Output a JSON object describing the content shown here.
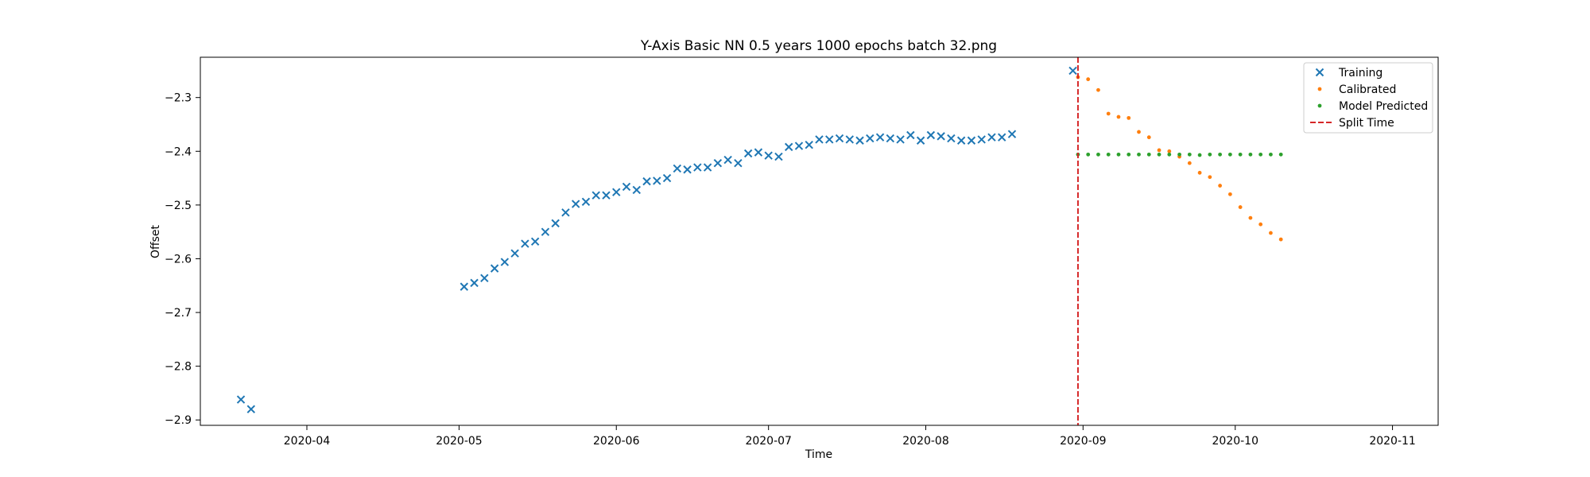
{
  "chart_data": {
    "type": "scatter",
    "title": "Y-Axis Basic NN 0.5 years 1000 epochs batch 32.png",
    "xlabel": "Time",
    "ylabel": "Offset",
    "xlim": [
      "2020-03-11",
      "2020-11-10"
    ],
    "ylim": [
      -2.91,
      -2.225
    ],
    "x_ticks": [
      "2020-04-01",
      "2020-05-01",
      "2020-06-01",
      "2020-07-01",
      "2020-08-01",
      "2020-09-01",
      "2020-10-01",
      "2020-11-01"
    ],
    "x_tick_labels": [
      "2020-04",
      "2020-05",
      "2020-06",
      "2020-07",
      "2020-08",
      "2020-09",
      "2020-10",
      "2020-11"
    ],
    "y_ticks": [
      -2.3,
      -2.4,
      -2.5,
      -2.6,
      -2.7,
      -2.8,
      -2.9
    ],
    "y_tick_labels": [
      "−2.3",
      "−2.4",
      "−2.5",
      "−2.6",
      "−2.7",
      "−2.8",
      "−2.9"
    ],
    "grid": false,
    "legend_position": "top-right",
    "series": [
      {
        "name": "Training",
        "marker": "x",
        "color": "#1f77b4",
        "points": [
          [
            "2020-03-19",
            -2.862
          ],
          [
            "2020-03-21",
            -2.88
          ],
          [
            "2020-05-02",
            -2.652
          ],
          [
            "2020-05-04",
            -2.645
          ],
          [
            "2020-05-06",
            -2.636
          ],
          [
            "2020-05-08",
            -2.618
          ],
          [
            "2020-05-10",
            -2.606
          ],
          [
            "2020-05-12",
            -2.59
          ],
          [
            "2020-05-14",
            -2.572
          ],
          [
            "2020-05-16",
            -2.568
          ],
          [
            "2020-05-18",
            -2.55
          ],
          [
            "2020-05-20",
            -2.534
          ],
          [
            "2020-05-22",
            -2.514
          ],
          [
            "2020-05-24",
            -2.498
          ],
          [
            "2020-05-26",
            -2.494
          ],
          [
            "2020-05-28",
            -2.482
          ],
          [
            "2020-05-30",
            -2.482
          ],
          [
            "2020-06-01",
            -2.476
          ],
          [
            "2020-06-03",
            -2.466
          ],
          [
            "2020-06-05",
            -2.472
          ],
          [
            "2020-06-07",
            -2.456
          ],
          [
            "2020-06-09",
            -2.455
          ],
          [
            "2020-06-11",
            -2.45
          ],
          [
            "2020-06-13",
            -2.432
          ],
          [
            "2020-06-15",
            -2.434
          ],
          [
            "2020-06-17",
            -2.43
          ],
          [
            "2020-06-19",
            -2.43
          ],
          [
            "2020-06-21",
            -2.422
          ],
          [
            "2020-06-23",
            -2.416
          ],
          [
            "2020-06-25",
            -2.422
          ],
          [
            "2020-06-27",
            -2.404
          ],
          [
            "2020-06-29",
            -2.402
          ],
          [
            "2020-07-01",
            -2.408
          ],
          [
            "2020-07-03",
            -2.41
          ],
          [
            "2020-07-05",
            -2.392
          ],
          [
            "2020-07-07",
            -2.39
          ],
          [
            "2020-07-09",
            -2.388
          ],
          [
            "2020-07-11",
            -2.378
          ],
          [
            "2020-07-13",
            -2.378
          ],
          [
            "2020-07-15",
            -2.376
          ],
          [
            "2020-07-17",
            -2.378
          ],
          [
            "2020-07-19",
            -2.38
          ],
          [
            "2020-07-21",
            -2.376
          ],
          [
            "2020-07-23",
            -2.374
          ],
          [
            "2020-07-25",
            -2.376
          ],
          [
            "2020-07-27",
            -2.378
          ],
          [
            "2020-07-29",
            -2.37
          ],
          [
            "2020-07-31",
            -2.38
          ],
          [
            "2020-08-02",
            -2.37
          ],
          [
            "2020-08-04",
            -2.372
          ],
          [
            "2020-08-06",
            -2.376
          ],
          [
            "2020-08-08",
            -2.38
          ],
          [
            "2020-08-10",
            -2.38
          ],
          [
            "2020-08-12",
            -2.378
          ],
          [
            "2020-08-14",
            -2.374
          ],
          [
            "2020-08-16",
            -2.374
          ],
          [
            "2020-08-18",
            -2.368
          ],
          [
            "2020-08-30",
            -2.25
          ]
        ]
      },
      {
        "name": "Calibrated",
        "marker": "dot",
        "color": "#ff7f0e",
        "points": [
          [
            "2020-08-31",
            -2.262
          ],
          [
            "2020-09-02",
            -2.266
          ],
          [
            "2020-09-04",
            -2.286
          ],
          [
            "2020-09-06",
            -2.33
          ],
          [
            "2020-09-08",
            -2.336
          ],
          [
            "2020-09-10",
            -2.338
          ],
          [
            "2020-09-12",
            -2.364
          ],
          [
            "2020-09-14",
            -2.374
          ],
          [
            "2020-09-16",
            -2.398
          ],
          [
            "2020-09-18",
            -2.4
          ],
          [
            "2020-09-20",
            -2.41
          ],
          [
            "2020-09-22",
            -2.422
          ],
          [
            "2020-09-24",
            -2.44
          ],
          [
            "2020-09-26",
            -2.448
          ],
          [
            "2020-09-28",
            -2.464
          ],
          [
            "2020-09-30",
            -2.48
          ],
          [
            "2020-10-02",
            -2.504
          ],
          [
            "2020-10-04",
            -2.524
          ],
          [
            "2020-10-06",
            -2.536
          ],
          [
            "2020-10-08",
            -2.552
          ],
          [
            "2020-10-10",
            -2.564
          ]
        ]
      },
      {
        "name": "Model Predicted",
        "marker": "dot",
        "color": "#2ca02c",
        "points": [
          [
            "2020-08-31",
            -2.406
          ],
          [
            "2020-09-02",
            -2.406
          ],
          [
            "2020-09-04",
            -2.406
          ],
          [
            "2020-09-06",
            -2.406
          ],
          [
            "2020-09-08",
            -2.406
          ],
          [
            "2020-09-10",
            -2.406
          ],
          [
            "2020-09-12",
            -2.406
          ],
          [
            "2020-09-14",
            -2.406
          ],
          [
            "2020-09-16",
            -2.406
          ],
          [
            "2020-09-18",
            -2.406
          ],
          [
            "2020-09-20",
            -2.406
          ],
          [
            "2020-09-22",
            -2.406
          ],
          [
            "2020-09-24",
            -2.407
          ],
          [
            "2020-09-26",
            -2.406
          ],
          [
            "2020-09-28",
            -2.406
          ],
          [
            "2020-09-30",
            -2.406
          ],
          [
            "2020-10-02",
            -2.406
          ],
          [
            "2020-10-04",
            -2.406
          ],
          [
            "2020-10-06",
            -2.406
          ],
          [
            "2020-10-08",
            -2.406
          ],
          [
            "2020-10-10",
            -2.406
          ]
        ]
      }
    ],
    "split_time": {
      "name": "Split Time",
      "x": "2020-08-31",
      "color": "#d62728",
      "style": "dashed"
    }
  }
}
